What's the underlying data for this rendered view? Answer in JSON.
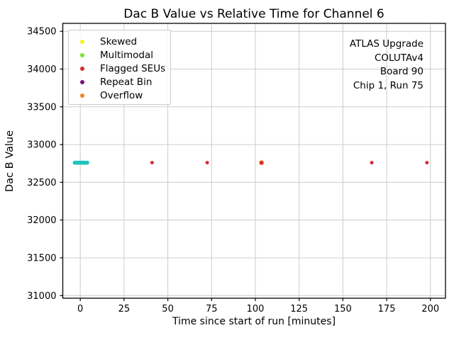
{
  "chart_data": {
    "type": "scatter",
    "title": "Dac B Value vs Relative Time for Channel 6",
    "xlabel": "Time since start of run [minutes]",
    "ylabel": "Dac B Value",
    "xlim": [
      -10,
      208.6
    ],
    "ylim": [
      30965,
      34605
    ],
    "xticks": [
      0,
      25,
      50,
      75,
      100,
      125,
      150,
      175,
      200
    ],
    "yticks": [
      31000,
      31500,
      32000,
      32500,
      33000,
      33500,
      34000,
      34500
    ],
    "grid": true,
    "grid_color": "#cccccc",
    "spine_color": "#000000",
    "background": "#ffffff",
    "legend": {
      "position": "upper-left",
      "entries": [
        {
          "label": "Skewed",
          "color": "#f9f21b"
        },
        {
          "label": "Multimodal",
          "color": "#76e32a"
        },
        {
          "label": "Flagged SEUs",
          "color": "#d62b35"
        },
        {
          "label": "Repeat Bin",
          "color": "#7e0e7e"
        },
        {
          "label": "Overflow",
          "color": "#f5841e"
        }
      ]
    },
    "annotation": {
      "align": "right",
      "lines": [
        "ATLAS Upgrade",
        "COLUTAv4",
        "Board 90",
        "Chip 1, Run 75"
      ]
    },
    "series": [
      {
        "name": "normal",
        "color": "#1ec5bd",
        "marker_radius": 2.8,
        "x": [
          -3.2,
          -2.8,
          -2.4,
          -2.0,
          -1.6,
          -1.2,
          -0.8,
          -0.4,
          0.0,
          0.4,
          0.8,
          1.2,
          1.6,
          2.0,
          2.4,
          2.8,
          3.2,
          3.6,
          4.0
        ],
        "y": [
          32760,
          32760,
          32760,
          32760,
          32760,
          32760,
          32760,
          32760,
          32760,
          32760,
          32760,
          32760,
          32760,
          32760,
          32760,
          32760,
          32760,
          32760,
          32760
        ]
      },
      {
        "name": "overflow",
        "color": "#f5841e",
        "marker_radius": 3.4,
        "x": [
          103.5
        ],
        "y": [
          32760
        ]
      },
      {
        "name": "flagged_seus",
        "color": "#d62b35",
        "marker_radius": 2.5,
        "x": [
          41,
          72.5,
          103.5,
          166.5,
          198
        ],
        "y": [
          32760,
          32760,
          32760,
          32760,
          32760
        ]
      }
    ]
  }
}
